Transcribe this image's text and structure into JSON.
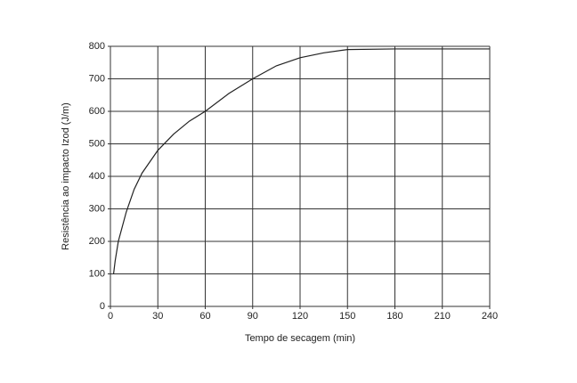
{
  "chart_data": {
    "type": "line",
    "x_label": "Tempo de secagem (min)",
    "y_label": "Resistência ao impacto Izod (J/m)",
    "xlim": [
      0,
      240
    ],
    "xticks": [
      0,
      30,
      60,
      90,
      120,
      150,
      180,
      210,
      240
    ],
    "ylim": [
      0,
      800
    ],
    "yticks": [
      0,
      100,
      200,
      300,
      400,
      500,
      600,
      700,
      800
    ],
    "grid": true,
    "series": [
      {
        "color": "#222222",
        "x": [
          2,
          3,
          5,
          10,
          15,
          20,
          30,
          40,
          50,
          60,
          75,
          90,
          105,
          120,
          135,
          150,
          180,
          210,
          240
        ],
        "values": [
          100,
          140,
          200,
          290,
          360,
          410,
          480,
          530,
          570,
          600,
          655,
          700,
          740,
          765,
          780,
          790,
          792,
          792,
          792
        ]
      }
    ]
  }
}
